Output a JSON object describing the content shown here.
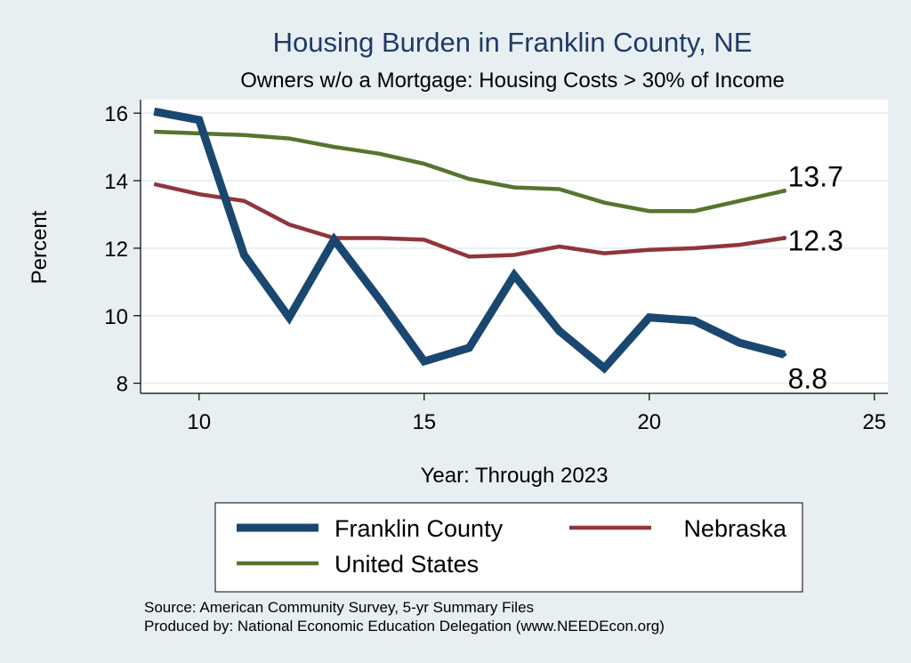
{
  "chart_data": {
    "type": "line",
    "title": "Housing Burden in Franklin County, NE",
    "subtitle": "Owners w/o a Mortgage: Housing Costs > 30% of Income",
    "xlabel": "Year: Through 2023",
    "ylabel": "Percent",
    "xlim": [
      8.7,
      25.3
    ],
    "ylim": [
      7.7,
      16.4
    ],
    "xticks": [
      10,
      15,
      20,
      25
    ],
    "yticks": [
      8,
      10,
      12,
      14,
      16
    ],
    "grid": "horizontal",
    "legend_position": "bottom",
    "series": [
      {
        "name": "Franklin County",
        "color": "#1a476f",
        "x": [
          9,
          10,
          11,
          12,
          13,
          14,
          15,
          16,
          17,
          18,
          19,
          20,
          21,
          22,
          23
        ],
        "y": [
          16.05,
          15.8,
          11.8,
          9.95,
          12.25,
          10.5,
          8.65,
          9.05,
          11.2,
          9.55,
          8.45,
          9.95,
          9.85,
          9.2,
          8.85
        ],
        "end_label": "8.8"
      },
      {
        "name": "Nebraska",
        "color": "#90353b",
        "x": [
          9,
          10,
          11,
          12,
          13,
          14,
          15,
          16,
          17,
          18,
          19,
          20,
          21,
          22,
          23
        ],
        "y": [
          13.9,
          13.6,
          13.4,
          12.7,
          12.3,
          12.3,
          12.25,
          11.75,
          11.8,
          12.05,
          11.85,
          11.95,
          12.0,
          12.1,
          12.3
        ],
        "end_label": "12.3"
      },
      {
        "name": "United States",
        "color": "#55752f",
        "x": [
          9,
          10,
          11,
          12,
          13,
          14,
          15,
          16,
          17,
          18,
          19,
          20,
          21,
          22,
          23
        ],
        "y": [
          15.45,
          15.4,
          15.35,
          15.25,
          15.0,
          14.8,
          14.5,
          14.05,
          13.8,
          13.75,
          13.35,
          13.1,
          13.1,
          13.4,
          13.7
        ],
        "end_label": "13.7"
      }
    ],
    "source_lines": [
      "Source: American Community Survey, 5-yr Summary Files",
      "Produced by: National Economic Education Delegation (www.NEEDEcon.org)"
    ]
  }
}
